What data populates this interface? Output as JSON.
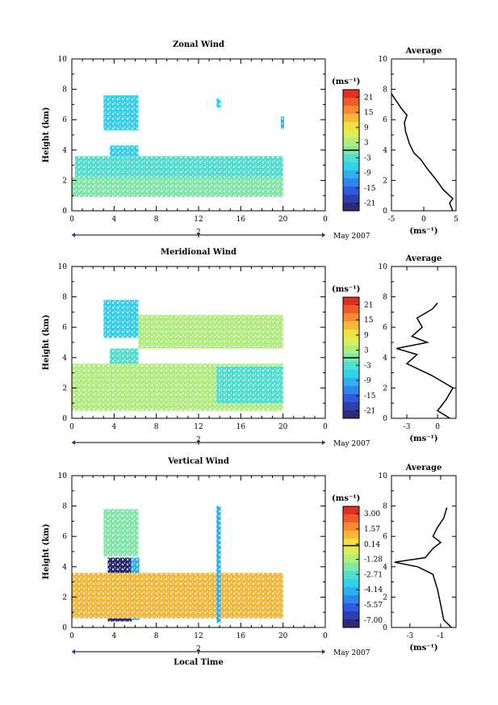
{
  "shared": {
    "xlabel": "Local Time",
    "date_label": "May 2007",
    "date_axis_tick": "2",
    "unit_label": "(ms⁻¹)",
    "avg_title": "Average",
    "avg_xlabel": "(ms⁻¹)"
  },
  "colormap": [
    "#2b2b7a",
    "#2f3fae",
    "#2f5be0",
    "#2f86ee",
    "#2fb0f0",
    "#30d2ee",
    "#4be0d0",
    "#7ee8a8",
    "#b0ee7c",
    "#d8ee5a",
    "#f0e040",
    "#f6b836",
    "#f68a30",
    "#ee5a28",
    "#e03020"
  ],
  "chart_data": [
    {
      "type": "heatmap",
      "title": "Zonal Wind",
      "ylabel": "Height (km)",
      "xlabel": "",
      "xlim": [
        0,
        24
      ],
      "ylim": [
        0,
        10
      ],
      "x_ticks": [
        "0",
        "4",
        "8",
        "12",
        "16",
        "20",
        "0"
      ],
      "y_ticks": [
        "0",
        "2",
        "4",
        "6",
        "8",
        "10"
      ],
      "colorbar": {
        "ticks": [
          "21",
          "15",
          "9",
          "3",
          "-3",
          "-9",
          "-15",
          "-21"
        ],
        "range": [
          -24,
          24
        ]
      },
      "patches": [
        {
          "x0": 3.0,
          "x1": 6.3,
          "y0": 7.6,
          "y1": 5.3,
          "v": -8
        },
        {
          "x0": 3.6,
          "x1": 6.3,
          "y0": 4.3,
          "y1": 2.3,
          "v": -5
        },
        {
          "x0": 0.3,
          "x1": 20.0,
          "y0": 3.6,
          "y1": 2.2,
          "v": -3
        },
        {
          "x0": 0.0,
          "x1": 20.0,
          "y0": 2.2,
          "y1": 0.9,
          "v": 1
        },
        {
          "x0": 13.7,
          "x1": 14.1,
          "y0": 7.4,
          "y1": 6.8,
          "v": -6
        },
        {
          "x0": 19.8,
          "x1": 20.1,
          "y0": 6.2,
          "y1": 5.4,
          "v": -10
        }
      ],
      "average": {
        "xlim": [
          -5,
          5
        ],
        "x_ticks": [
          "-5",
          "0",
          "5"
        ],
        "y_ticks": [
          "0",
          "2",
          "4",
          "6",
          "8",
          "10"
        ],
        "ylim": [
          0,
          10
        ],
        "profile": [
          [
            4.5,
            0.0
          ],
          [
            4.0,
            0.5
          ],
          [
            4.5,
            0.8
          ],
          [
            3.0,
            1.4
          ],
          [
            2.0,
            2.0
          ],
          [
            0.5,
            2.8
          ],
          [
            -0.5,
            3.4
          ],
          [
            -1.5,
            3.8
          ],
          [
            -2.2,
            4.4
          ],
          [
            -2.8,
            5.2
          ],
          [
            -3.0,
            5.8
          ],
          [
            -2.6,
            6.3
          ],
          [
            -3.4,
            6.7
          ],
          [
            -4.2,
            7.2
          ],
          [
            -5.0,
            7.7
          ]
        ]
      }
    },
    {
      "type": "heatmap",
      "title": "Meridional Wind",
      "ylabel": "Height (km)",
      "xlabel": "",
      "xlim": [
        0,
        24
      ],
      "ylim": [
        0,
        10
      ],
      "x_ticks": [
        "0",
        "4",
        "8",
        "12",
        "16",
        "20",
        "0"
      ],
      "y_ticks": [
        "0",
        "2",
        "4",
        "6",
        "8",
        "10"
      ],
      "colorbar": {
        "ticks": [
          "21",
          "15",
          "9",
          "3",
          "-3",
          "-9",
          "-15",
          "-21"
        ],
        "range": [
          -24,
          24
        ]
      },
      "patches": [
        {
          "x0": 3.0,
          "x1": 6.3,
          "y0": 7.8,
          "y1": 5.3,
          "v": -6
        },
        {
          "x0": 3.6,
          "x1": 6.3,
          "y0": 4.6,
          "y1": 2.3,
          "v": -4
        },
        {
          "x0": 6.3,
          "x1": 20.0,
          "y0": 6.8,
          "y1": 4.6,
          "v": 2
        },
        {
          "x0": 0.0,
          "x1": 20.0,
          "y0": 3.6,
          "y1": 0.5,
          "v": 3
        },
        {
          "x0": 13.7,
          "x1": 20.0,
          "y0": 3.4,
          "y1": 1.0,
          "v": -4
        }
      ],
      "average": {
        "xlim": [
          -4.5,
          1.8
        ],
        "x_ticks": [
          "-3",
          "0"
        ],
        "y_ticks": [
          "0",
          "2",
          "4",
          "6",
          "8",
          "10"
        ],
        "ylim": [
          0,
          10
        ],
        "profile": [
          [
            1.2,
            0.0
          ],
          [
            0.0,
            0.5
          ],
          [
            0.8,
            1.2
          ],
          [
            1.5,
            2.0
          ],
          [
            -0.5,
            2.8
          ],
          [
            -3.0,
            3.6
          ],
          [
            -2.0,
            4.2
          ],
          [
            -4.0,
            4.6
          ],
          [
            -1.0,
            5.0
          ],
          [
            -2.5,
            5.4
          ],
          [
            -1.5,
            6.0
          ],
          [
            -2.0,
            6.6
          ],
          [
            -0.5,
            7.2
          ],
          [
            0.0,
            7.6
          ]
        ]
      }
    },
    {
      "type": "heatmap",
      "title": "Vertical Wind",
      "ylabel": "Height (km)",
      "xlabel": "Local Time",
      "xlim": [
        0,
        24
      ],
      "ylim": [
        0,
        10
      ],
      "x_ticks": [
        "0",
        "4",
        "8",
        "12",
        "16",
        "20",
        "0"
      ],
      "y_ticks": [
        "0",
        "2",
        "4",
        "6",
        "8",
        "10"
      ],
      "colorbar": {
        "ticks": [
          "3.00",
          "1.57",
          "0.14",
          "-1.28",
          "-2.71",
          "-4.14",
          "-5.57",
          "-7.00"
        ],
        "range": [
          -7.7,
          3.7
        ]
      },
      "patches": [
        {
          "x0": 3.0,
          "x1": 6.3,
          "y0": 7.8,
          "y1": 4.7,
          "v": -1.8
        },
        {
          "x0": 3.4,
          "x1": 5.7,
          "y0": 4.6,
          "y1": 0.4,
          "v": -7.0
        },
        {
          "x0": 5.6,
          "x1": 6.4,
          "y0": 4.6,
          "y1": 0.5,
          "v": -4.5
        },
        {
          "x0": 0.0,
          "x1": 20.0,
          "y0": 3.6,
          "y1": 0.6,
          "v": 0.9
        },
        {
          "x0": 13.7,
          "x1": 14.1,
          "y0": 8.0,
          "y1": 0.3,
          "v": -4.0
        }
      ],
      "average": {
        "xlim": [
          -4.2,
          0.0
        ],
        "x_ticks": [
          "-3",
          "-1"
        ],
        "y_ticks": [
          "0",
          "2",
          "4",
          "6",
          "8",
          "10"
        ],
        "ylim": [
          0,
          10
        ],
        "profile": [
          [
            -0.3,
            0.0
          ],
          [
            -0.8,
            0.5
          ],
          [
            -1.0,
            1.5
          ],
          [
            -1.2,
            2.5
          ],
          [
            -1.5,
            3.5
          ],
          [
            -2.5,
            4.0
          ],
          [
            -4.0,
            4.3
          ],
          [
            -2.0,
            4.6
          ],
          [
            -1.5,
            5.2
          ],
          [
            -1.0,
            5.6
          ],
          [
            -1.5,
            6.0
          ],
          [
            -1.2,
            6.6
          ],
          [
            -0.8,
            7.2
          ],
          [
            -0.6,
            7.9
          ]
        ]
      }
    }
  ]
}
